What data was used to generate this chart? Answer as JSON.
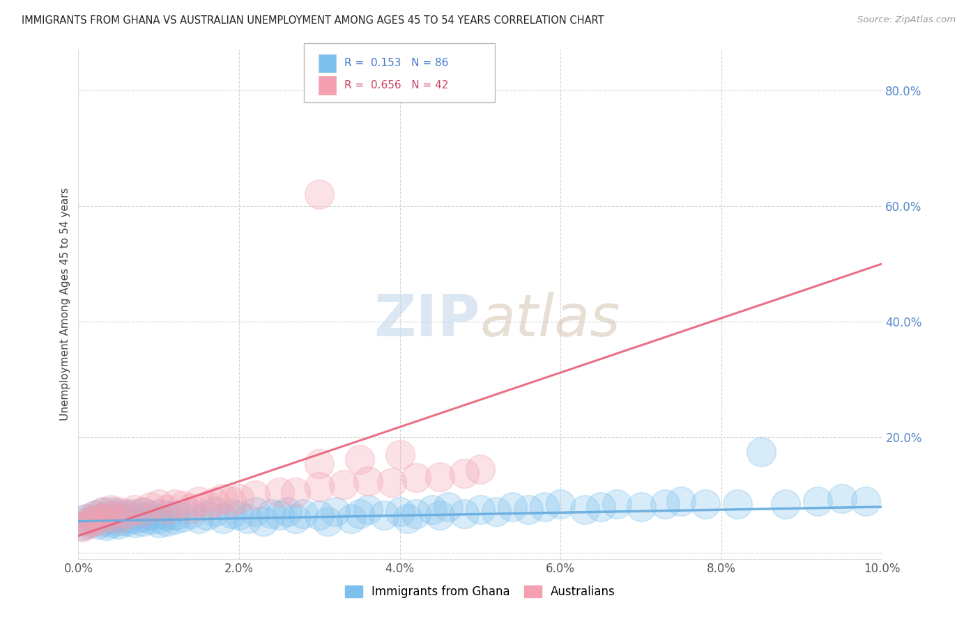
{
  "title": "IMMIGRANTS FROM GHANA VS AUSTRALIAN UNEMPLOYMENT AMONG AGES 45 TO 54 YEARS CORRELATION CHART",
  "source": "Source: ZipAtlas.com",
  "ylabel": "Unemployment Among Ages 45 to 54 years",
  "xlim": [
    0.0,
    0.1
  ],
  "ylim": [
    -0.01,
    0.87
  ],
  "xticks": [
    0.0,
    0.02,
    0.04,
    0.06,
    0.08,
    0.1
  ],
  "xtick_labels": [
    "0.0%",
    "2.0%",
    "4.0%",
    "6.0%",
    "8.0%",
    "10.0%"
  ],
  "yticks": [
    0.0,
    0.2,
    0.4,
    0.6,
    0.8
  ],
  "ytick_labels": [
    "",
    "20.0%",
    "40.0%",
    "60.0%",
    "80.0%"
  ],
  "color_blue": "#7DC0EE",
  "color_pink": "#F4A0B0",
  "color_line_blue": "#6aaee0",
  "color_line_pink": "#E8607A",
  "color_line_blue_dash": "#a0c8e8",
  "R_blue": 0.153,
  "N_blue": 86,
  "R_pink": 0.656,
  "N_pink": 42,
  "legend_label_blue": "Immigrants from Ghana",
  "legend_label_pink": "Australians",
  "watermark_zip": "ZIP",
  "watermark_atlas": "atlas",
  "background_color": "#ffffff",
  "blue_scatter_x": [
    0.0005,
    0.001,
    0.001,
    0.0015,
    0.002,
    0.002,
    0.0025,
    0.003,
    0.003,
    0.003,
    0.0035,
    0.004,
    0.004,
    0.004,
    0.004,
    0.005,
    0.005,
    0.005,
    0.005,
    0.006,
    0.006,
    0.006,
    0.007,
    0.007,
    0.007,
    0.008,
    0.008,
    0.008,
    0.009,
    0.009,
    0.01,
    0.01,
    0.01,
    0.011,
    0.011,
    0.012,
    0.012,
    0.013,
    0.014,
    0.015,
    0.016,
    0.017,
    0.018,
    0.019,
    0.02,
    0.021,
    0.022,
    0.023,
    0.024,
    0.025,
    0.026,
    0.027,
    0.028,
    0.03,
    0.031,
    0.032,
    0.034,
    0.035,
    0.036,
    0.038,
    0.04,
    0.041,
    0.042,
    0.044,
    0.045,
    0.046,
    0.048,
    0.05,
    0.052,
    0.054,
    0.056,
    0.058,
    0.06,
    0.063,
    0.065,
    0.067,
    0.07,
    0.073,
    0.075,
    0.078,
    0.082,
    0.085,
    0.088,
    0.092,
    0.095,
    0.098
  ],
  "blue_scatter_y": [
    0.048,
    0.055,
    0.06,
    0.052,
    0.058,
    0.065,
    0.05,
    0.055,
    0.062,
    0.07,
    0.048,
    0.052,
    0.058,
    0.065,
    0.072,
    0.05,
    0.055,
    0.062,
    0.068,
    0.055,
    0.06,
    0.068,
    0.052,
    0.06,
    0.068,
    0.055,
    0.062,
    0.07,
    0.058,
    0.065,
    0.052,
    0.06,
    0.068,
    0.055,
    0.065,
    0.058,
    0.065,
    0.062,
    0.068,
    0.06,
    0.065,
    0.072,
    0.06,
    0.068,
    0.065,
    0.06,
    0.072,
    0.055,
    0.068,
    0.065,
    0.072,
    0.06,
    0.068,
    0.065,
    0.055,
    0.072,
    0.06,
    0.068,
    0.075,
    0.065,
    0.072,
    0.06,
    0.068,
    0.075,
    0.065,
    0.08,
    0.068,
    0.075,
    0.072,
    0.08,
    0.075,
    0.08,
    0.085,
    0.075,
    0.08,
    0.085,
    0.08,
    0.085,
    0.09,
    0.085,
    0.085,
    0.175,
    0.085,
    0.09,
    0.095,
    0.09
  ],
  "pink_scatter_x": [
    0.0005,
    0.001,
    0.001,
    0.0015,
    0.002,
    0.002,
    0.003,
    0.003,
    0.004,
    0.004,
    0.005,
    0.005,
    0.006,
    0.007,
    0.008,
    0.009,
    0.01,
    0.011,
    0.012,
    0.013,
    0.014,
    0.015,
    0.016,
    0.017,
    0.018,
    0.019,
    0.02,
    0.022,
    0.025,
    0.027,
    0.03,
    0.033,
    0.036,
    0.039,
    0.042,
    0.045,
    0.048,
    0.03,
    0.035,
    0.04,
    0.05,
    0.03
  ],
  "pink_scatter_y": [
    0.045,
    0.05,
    0.06,
    0.055,
    0.055,
    0.065,
    0.06,
    0.072,
    0.065,
    0.075,
    0.06,
    0.072,
    0.068,
    0.075,
    0.072,
    0.08,
    0.085,
    0.075,
    0.085,
    0.082,
    0.078,
    0.09,
    0.082,
    0.088,
    0.095,
    0.09,
    0.095,
    0.1,
    0.105,
    0.105,
    0.115,
    0.118,
    0.125,
    0.122,
    0.13,
    0.132,
    0.138,
    0.155,
    0.162,
    0.17,
    0.145,
    0.62
  ],
  "pink_line_x0": 0.0,
  "pink_line_x1": 0.1,
  "pink_line_y0": 0.03,
  "pink_line_y1": 0.5,
  "blue_line_x0": 0.0,
  "blue_line_x1": 0.1,
  "blue_line_y0": 0.055,
  "blue_line_y1": 0.08
}
